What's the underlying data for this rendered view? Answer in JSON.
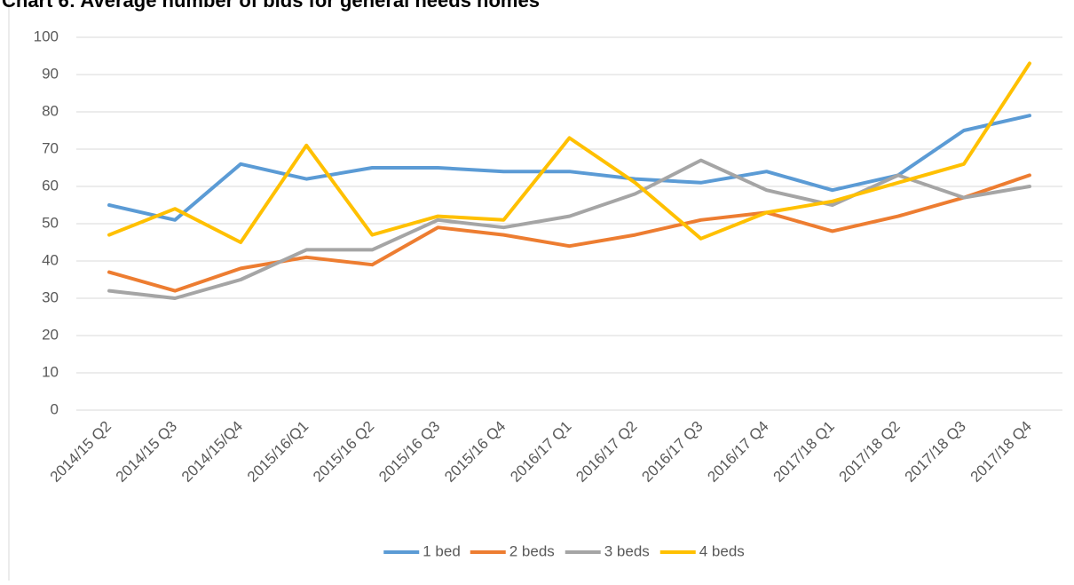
{
  "chart_data": {
    "type": "line",
    "title": "Chart 6: Average number of bids for general needs homes",
    "categories": [
      "2014/15 Q2",
      "2014/15 Q3",
      "2014/15/Q4",
      "2015/16/Q1",
      "2015/16 Q2",
      "2015/16 Q3",
      "2015/16 Q4",
      "2016/17 Q1",
      "2016/17 Q2",
      "2016/17 Q3",
      "2016/17 Q4",
      "2017/18 Q1",
      "2017/18 Q2",
      "2017/18 Q3",
      "2017/18 Q4"
    ],
    "series": [
      {
        "name": "1 bed",
        "color": "#5b9bd5",
        "values": [
          55,
          51,
          66,
          62,
          65,
          65,
          64,
          64,
          62,
          61,
          64,
          59,
          63,
          75,
          79
        ]
      },
      {
        "name": "2 beds",
        "color": "#ed7d31",
        "values": [
          37,
          32,
          38,
          41,
          39,
          49,
          47,
          44,
          47,
          51,
          53,
          48,
          52,
          57,
          63
        ]
      },
      {
        "name": "3 beds",
        "color": "#a5a5a5",
        "values": [
          32,
          30,
          35,
          43,
          43,
          51,
          49,
          52,
          58,
          67,
          59,
          55,
          63,
          57,
          60
        ]
      },
      {
        "name": "4 beds",
        "color": "#ffc000",
        "values": [
          47,
          54,
          45,
          71,
          47,
          52,
          51,
          73,
          61,
          46,
          53,
          56,
          61,
          66,
          93
        ]
      }
    ],
    "ylim": [
      0,
      100
    ],
    "yticks": [
      0,
      10,
      20,
      30,
      40,
      50,
      60,
      70,
      80,
      90,
      100
    ],
    "grid": true,
    "legend": "bottom"
  }
}
